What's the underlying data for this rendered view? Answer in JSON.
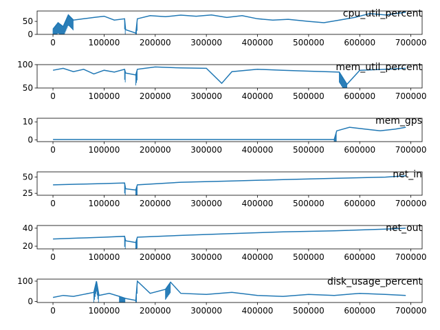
{
  "chart_data": [
    {
      "type": "line",
      "title": "cpu_util_percent",
      "color": "#1f77b4",
      "xlim": [
        -31000,
        722000
      ],
      "ylim": [
        0,
        90
      ],
      "xticks": [
        0,
        100000,
        200000,
        300000,
        400000,
        500000,
        600000,
        700000
      ],
      "xtick_labels": [
        "0",
        "100000",
        "200000",
        "300000",
        "400000",
        "500000",
        "600000",
        "700000"
      ],
      "yticks": [
        0,
        50
      ],
      "ytick_labels": [
        "0",
        "50"
      ],
      "series": [
        {
          "x": [
            0,
            10000,
            20000,
            30000,
            40000,
            60000,
            80000,
            100000,
            120000,
            140000,
            142000,
            162000,
            165000,
            190000,
            220000,
            250000,
            280000,
            310000,
            340000,
            370000,
            400000,
            430000,
            460000,
            500000,
            530000,
            560000,
            590000,
            620000,
            650000,
            690000
          ],
          "values": [
            20,
            45,
            30,
            75,
            55,
            60,
            65,
            70,
            55,
            60,
            18,
            5,
            60,
            72,
            68,
            74,
            70,
            75,
            65,
            72,
            60,
            55,
            58,
            50,
            45,
            55,
            65,
            80,
            75,
            85
          ]
        }
      ]
    },
    {
      "type": "line",
      "title": "mem_util_percent",
      "color": "#1f77b4",
      "xlim": [
        -31000,
        722000
      ],
      "ylim": [
        50,
        100
      ],
      "xticks": [
        0,
        100000,
        200000,
        300000,
        400000,
        500000,
        600000,
        700000
      ],
      "xtick_labels": [
        "0",
        "100000",
        "200000",
        "300000",
        "400000",
        "500000",
        "600000",
        "700000"
      ],
      "yticks": [
        50,
        100
      ],
      "ytick_labels": [
        "50",
        "100"
      ],
      "series": [
        {
          "x": [
            0,
            20000,
            40000,
            60000,
            80000,
            100000,
            120000,
            140000,
            142000,
            162000,
            165000,
            200000,
            250000,
            300000,
            330000,
            350000,
            400000,
            450000,
            500000,
            560000,
            575000,
            600000,
            650000,
            690000
          ],
          "values": [
            88,
            92,
            85,
            90,
            80,
            88,
            84,
            90,
            82,
            78,
            90,
            95,
            93,
            92,
            60,
            85,
            90,
            88,
            86,
            84,
            58,
            88,
            90,
            92
          ]
        }
      ]
    },
    {
      "type": "line",
      "title": "mem_gps",
      "color": "#1f77b4",
      "xlim": [
        -31000,
        722000
      ],
      "ylim": [
        -1,
        12
      ],
      "xticks": [
        0,
        100000,
        200000,
        300000,
        400000,
        500000,
        600000,
        700000
      ],
      "xtick_labels": [
        "0",
        "100000",
        "200000",
        "300000",
        "400000",
        "500000",
        "600000",
        "700000"
      ],
      "yticks": [
        0,
        10
      ],
      "ytick_labels": [
        "0",
        "10"
      ],
      "series": [
        {
          "x": [
            0,
            100000,
            200000,
            300000,
            400000,
            500000,
            550000,
            555000,
            580000,
            610000,
            640000,
            670000,
            690000
          ],
          "values": [
            0.2,
            0.2,
            0.2,
            0.2,
            0.2,
            0.2,
            0.2,
            5,
            7,
            6,
            5,
            6,
            7
          ]
        }
      ]
    },
    {
      "type": "line",
      "title": "net_in",
      "color": "#1f77b4",
      "xlim": [
        -31000,
        722000
      ],
      "ylim": [
        22,
        58
      ],
      "xticks": [
        0,
        100000,
        200000,
        300000,
        400000,
        500000,
        600000,
        700000
      ],
      "xtick_labels": [
        "0",
        "100000",
        "200000",
        "300000",
        "400000",
        "500000",
        "600000",
        "700000"
      ],
      "yticks": [
        25,
        50
      ],
      "ytick_labels": [
        "25",
        "50"
      ],
      "series": [
        {
          "x": [
            0,
            50000,
            100000,
            140000,
            142000,
            162000,
            165000,
            250000,
            350000,
            450000,
            550000,
            650000,
            690000
          ],
          "values": [
            38,
            39,
            40,
            41,
            32,
            30,
            38,
            42,
            44,
            46,
            48,
            50,
            52
          ]
        }
      ]
    },
    {
      "type": "line",
      "title": "net_out",
      "color": "#1f77b4",
      "xlim": [
        -31000,
        722000
      ],
      "ylim": [
        17,
        43
      ],
      "xticks": [
        0,
        100000,
        200000,
        300000,
        400000,
        500000,
        600000,
        700000
      ],
      "xtick_labels": [
        "0",
        "100000",
        "200000",
        "300000",
        "400000",
        "500000",
        "600000",
        "700000"
      ],
      "yticks": [
        20,
        40
      ],
      "ytick_labels": [
        "20",
        "40"
      ],
      "series": [
        {
          "x": [
            0,
            50000,
            100000,
            140000,
            142000,
            162000,
            165000,
            250000,
            350000,
            450000,
            550000,
            650000,
            690000
          ],
          "values": [
            28,
            29,
            30,
            31,
            26,
            24,
            30,
            32,
            34,
            36,
            37,
            39,
            40
          ]
        }
      ]
    },
    {
      "type": "line",
      "title": "disk_usage_percent",
      "color": "#1f77b4",
      "xlim": [
        -31000,
        722000
      ],
      "ylim": [
        -5,
        110
      ],
      "xticks": [
        0,
        100000,
        200000,
        300000,
        400000,
        500000,
        600000,
        700000
      ],
      "xtick_labels": [
        "0",
        "100000",
        "200000",
        "300000",
        "400000",
        "500000",
        "600000",
        "700000"
      ],
      "yticks": [
        0,
        100
      ],
      "ytick_labels": [
        "0",
        "100"
      ],
      "series": [
        {
          "x": [
            0,
            20000,
            40000,
            60000,
            80000,
            85000,
            90000,
            110000,
            130000,
            142000,
            162000,
            165000,
            190000,
            220000,
            230000,
            250000,
            300000,
            350000,
            400000,
            450000,
            500000,
            550000,
            600000,
            650000,
            690000
          ],
          "values": [
            20,
            30,
            25,
            35,
            45,
            100,
            30,
            40,
            25,
            15,
            5,
            100,
            40,
            60,
            95,
            40,
            35,
            45,
            30,
            25,
            35,
            30,
            40,
            35,
            30
          ]
        }
      ]
    }
  ]
}
